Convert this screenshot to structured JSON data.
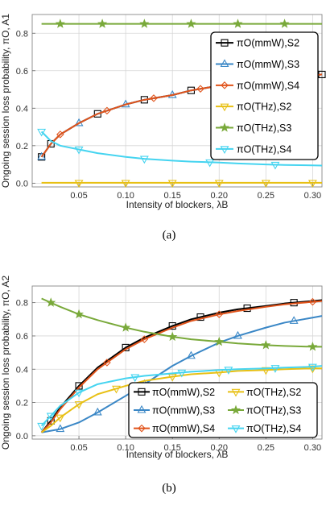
{
  "chart_data": [
    {
      "type": "line",
      "ylabel": "Ongoing session loss probability, πO, A1",
      "xlabel": "Intensity of blockers, λB",
      "caption": "(a)",
      "xlim": [
        0.0,
        0.31
      ],
      "ylim": [
        -0.02,
        0.9
      ],
      "xticks": [
        "0.05",
        "0.10",
        "0.15",
        "0.20",
        "0.25",
        "0.30"
      ],
      "xtick_values": [
        0.05,
        0.1,
        0.15,
        0.2,
        0.25,
        0.3
      ],
      "yticks": [
        "0.0",
        "0.2",
        "0.4",
        "0.6",
        "0.8"
      ],
      "ytick_values": [
        0.0,
        0.2,
        0.4,
        0.6,
        0.8
      ],
      "grid": true,
      "legend_position": "top-right",
      "series": [
        {
          "name": "πO(mmW),S2",
          "color": "#000000",
          "marker": "square",
          "x": [
            0.01,
            0.02,
            0.03,
            0.05,
            0.07,
            0.1,
            0.12,
            0.15,
            0.17,
            0.2,
            0.22,
            0.25,
            0.27,
            0.3,
            0.31
          ],
          "y": [
            0.14,
            0.21,
            0.26,
            0.32,
            0.37,
            0.42,
            0.445,
            0.47,
            0.495,
            0.52,
            0.535,
            0.55,
            0.56,
            0.575,
            0.58
          ],
          "markers_x": [
            0.01,
            0.02,
            0.07,
            0.12,
            0.17,
            0.22,
            0.31
          ]
        },
        {
          "name": "πO(mmW),S3",
          "color": "#3a87c6",
          "marker": "triangle-up",
          "x": [
            0.01,
            0.02,
            0.03,
            0.05,
            0.07,
            0.1,
            0.12,
            0.15,
            0.17,
            0.2,
            0.22,
            0.25,
            0.27,
            0.3,
            0.31
          ],
          "y": [
            0.14,
            0.21,
            0.26,
            0.32,
            0.37,
            0.42,
            0.445,
            0.47,
            0.495,
            0.52,
            0.535,
            0.55,
            0.56,
            0.575,
            0.58
          ],
          "markers_x": [
            0.01,
            0.05,
            0.1,
            0.15,
            0.2
          ]
        },
        {
          "name": "πO(mmW),S4",
          "color": "#e1531a",
          "marker": "diamond",
          "x": [
            0.01,
            0.02,
            0.03,
            0.05,
            0.07,
            0.1,
            0.12,
            0.15,
            0.17,
            0.2,
            0.22,
            0.25,
            0.27,
            0.3,
            0.31
          ],
          "y": [
            0.14,
            0.21,
            0.26,
            0.32,
            0.37,
            0.42,
            0.445,
            0.47,
            0.495,
            0.52,
            0.535,
            0.55,
            0.56,
            0.575,
            0.58
          ],
          "markers_x": [
            0.03,
            0.08,
            0.13,
            0.18
          ]
        },
        {
          "name": "πO(THz),S2",
          "color": "#e8c014",
          "marker": "triangle-down",
          "x": [
            0.01,
            0.31
          ],
          "y": [
            0.002,
            0.002
          ],
          "markers_x": [
            0.05,
            0.1,
            0.15,
            0.2,
            0.25,
            0.3
          ]
        },
        {
          "name": "πO(THz),S3",
          "color": "#79a93a",
          "marker": "star",
          "x": [
            0.01,
            0.31
          ],
          "y": [
            0.85,
            0.85
          ],
          "markers_x": [
            0.03,
            0.075,
            0.12,
            0.17,
            0.22,
            0.27
          ]
        },
        {
          "name": "πO(THz),S4",
          "color": "#45d4f0",
          "marker": "triangle-down",
          "x": [
            0.01,
            0.02,
            0.03,
            0.05,
            0.07,
            0.1,
            0.12,
            0.15,
            0.17,
            0.2,
            0.22,
            0.25,
            0.27,
            0.3,
            0.31
          ],
          "y": [
            0.275,
            0.225,
            0.2,
            0.18,
            0.16,
            0.14,
            0.13,
            0.12,
            0.115,
            0.11,
            0.105,
            0.1,
            0.097,
            0.095,
            0.094
          ],
          "markers_x": [
            0.01,
            0.05,
            0.12,
            0.19,
            0.26
          ]
        }
      ]
    },
    {
      "type": "line",
      "ylabel": "Ongoing session loss probability, πO, A2",
      "xlabel": "Intensity of blockers, λB",
      "caption": "(b)",
      "xlim": [
        0.0,
        0.31
      ],
      "ylim": [
        -0.02,
        0.9
      ],
      "xticks": [
        "0.05",
        "0.10",
        "0.15",
        "0.20",
        "0.25",
        "0.30"
      ],
      "xtick_values": [
        0.05,
        0.1,
        0.15,
        0.2,
        0.25,
        0.3
      ],
      "yticks": [
        "0.0",
        "0.2",
        "0.4",
        "0.6",
        "0.8"
      ],
      "ytick_values": [
        0.0,
        0.2,
        0.4,
        0.6,
        0.8
      ],
      "grid": true,
      "legend_position": "bottom-right",
      "series": [
        {
          "name": "πO(mmW),S2",
          "color": "#000000",
          "marker": "square",
          "x": [
            0.01,
            0.02,
            0.03,
            0.05,
            0.07,
            0.1,
            0.12,
            0.15,
            0.17,
            0.2,
            0.22,
            0.25,
            0.27,
            0.3,
            0.31
          ],
          "y": [
            0.02,
            0.09,
            0.17,
            0.3,
            0.41,
            0.53,
            0.59,
            0.66,
            0.7,
            0.74,
            0.76,
            0.78,
            0.795,
            0.81,
            0.815
          ],
          "markers_x": [
            0.02,
            0.05,
            0.1,
            0.15,
            0.18,
            0.23,
            0.28
          ]
        },
        {
          "name": "πO(mmW),S3",
          "color": "#3a87c6",
          "marker": "triangle-up",
          "x": [
            0.01,
            0.02,
            0.03,
            0.05,
            0.07,
            0.1,
            0.12,
            0.15,
            0.17,
            0.2,
            0.22,
            0.25,
            0.27,
            0.3,
            0.31
          ],
          "y": [
            0.02,
            0.03,
            0.04,
            0.08,
            0.14,
            0.24,
            0.31,
            0.42,
            0.48,
            0.56,
            0.6,
            0.65,
            0.68,
            0.71,
            0.72
          ],
          "markers_x": [
            0.03,
            0.07,
            0.12,
            0.17,
            0.22,
            0.28
          ]
        },
        {
          "name": "πO(mmW),S4",
          "color": "#e1531a",
          "marker": "diamond",
          "x": [
            0.01,
            0.02,
            0.03,
            0.05,
            0.07,
            0.1,
            0.12,
            0.15,
            0.17,
            0.2,
            0.22,
            0.25,
            0.27,
            0.3,
            0.31
          ],
          "y": [
            0.02,
            0.08,
            0.16,
            0.29,
            0.4,
            0.52,
            0.58,
            0.65,
            0.69,
            0.73,
            0.75,
            0.775,
            0.79,
            0.805,
            0.81
          ],
          "markers_x": [
            0.08,
            0.12,
            0.2,
            0.3
          ]
        },
        {
          "name": "πO(THz),S2",
          "color": "#e8c014",
          "marker": "triangle-down",
          "x": [
            0.01,
            0.02,
            0.03,
            0.05,
            0.07,
            0.1,
            0.12,
            0.15,
            0.17,
            0.2,
            0.22,
            0.25,
            0.27,
            0.3,
            0.31
          ],
          "y": [
            0.02,
            0.06,
            0.11,
            0.19,
            0.25,
            0.3,
            0.33,
            0.355,
            0.37,
            0.38,
            0.39,
            0.395,
            0.4,
            0.405,
            0.405
          ],
          "markers_x": [
            0.03,
            0.05,
            0.09,
            0.15,
            0.2,
            0.25,
            0.3
          ]
        },
        {
          "name": "πO(THz),S3",
          "color": "#79a93a",
          "marker": "star",
          "x": [
            0.01,
            0.02,
            0.03,
            0.05,
            0.07,
            0.1,
            0.12,
            0.15,
            0.17,
            0.2,
            0.22,
            0.25,
            0.27,
            0.3,
            0.31
          ],
          "y": [
            0.825,
            0.8,
            0.775,
            0.73,
            0.695,
            0.65,
            0.625,
            0.595,
            0.58,
            0.565,
            0.555,
            0.545,
            0.54,
            0.535,
            0.535
          ],
          "markers_x": [
            0.02,
            0.05,
            0.1,
            0.15,
            0.2,
            0.25,
            0.3
          ]
        },
        {
          "name": "πO(THz),S4",
          "color": "#45d4f0",
          "marker": "triangle-down",
          "x": [
            0.01,
            0.02,
            0.03,
            0.05,
            0.07,
            0.1,
            0.12,
            0.15,
            0.17,
            0.2,
            0.22,
            0.25,
            0.27,
            0.3,
            0.31
          ],
          "y": [
            0.06,
            0.12,
            0.18,
            0.26,
            0.31,
            0.345,
            0.36,
            0.375,
            0.385,
            0.395,
            0.4,
            0.405,
            0.41,
            0.415,
            0.42
          ],
          "markers_x": [
            0.01,
            0.02,
            0.05,
            0.11,
            0.16,
            0.21,
            0.26,
            0.3
          ]
        }
      ]
    }
  ]
}
